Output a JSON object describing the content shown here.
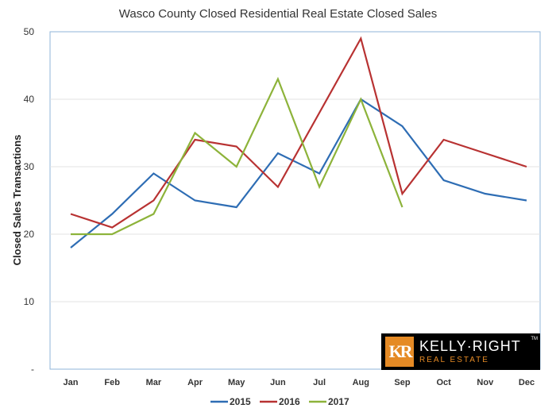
{
  "chart_data": {
    "type": "line",
    "title": "Wasco County Closed Residential Real Estate Closed Sales",
    "xlabel": "",
    "ylabel": "Closed Sales Transactions",
    "categories": [
      "Jan",
      "Feb",
      "Mar",
      "Apr",
      "May",
      "Jun",
      "Jul",
      "Aug",
      "Sep",
      "Oct",
      "Nov",
      "Dec"
    ],
    "yticks": [
      "-",
      "10",
      "20",
      "30",
      "40",
      "50"
    ],
    "ylim": [
      0,
      50
    ],
    "grid": true,
    "legend": "bottom",
    "series": [
      {
        "name": "2015",
        "color": "#2e6db4",
        "values": [
          18,
          23,
          29,
          25,
          24,
          32,
          29,
          40,
          36,
          28,
          26,
          25
        ]
      },
      {
        "name": "2016",
        "color": "#b83232",
        "values": [
          23,
          21,
          25,
          34,
          33,
          27,
          38,
          49,
          26,
          34,
          32,
          30
        ]
      },
      {
        "name": "2017",
        "color": "#8db33a",
        "values": [
          20,
          20,
          23,
          35,
          30,
          43,
          27,
          40,
          24,
          null,
          null,
          null
        ]
      }
    ]
  },
  "logo": {
    "mark": "KR",
    "name": "KELLY·RIGHT",
    "sub": "REAL ESTATE",
    "tm": "TM",
    "accent": "#e58a25"
  }
}
